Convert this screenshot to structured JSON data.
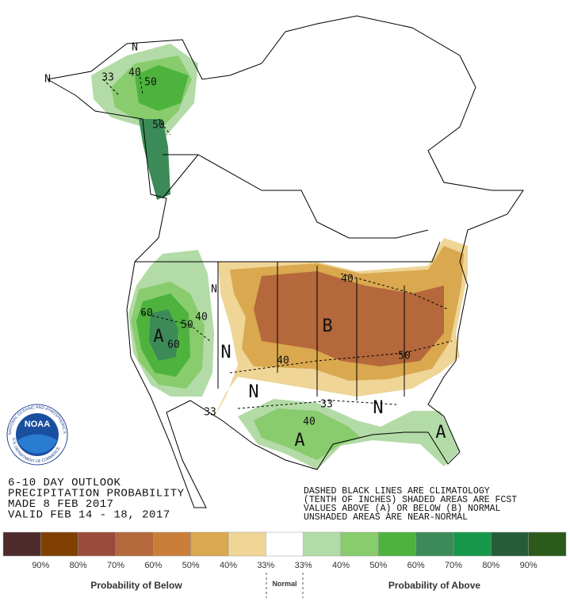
{
  "map": {
    "labels": [
      "N",
      "N",
      "33",
      "40",
      "50",
      "50",
      "N",
      "60",
      "50",
      "40",
      "A",
      "60",
      "N",
      "N",
      "33",
      "40",
      "B",
      "40",
      "50",
      "33",
      "N",
      "40",
      "A",
      "A"
    ]
  },
  "logo": {
    "name": "NOAA",
    "ring_top": "NATIONAL OCEANIC AND ATMOSPHERIC ADMINISTRATION",
    "ring_bottom": "U.S. DEPARTMENT OF COMMERCE"
  },
  "title_block": [
    "6-10 DAY OUTLOOK",
    "PRECIPITATION PROBABILITY",
    "MADE  8 FEB 2017",
    "VALID  FEB 14 - 18, 2017"
  ],
  "note_block": [
    "DASHED BLACK LINES ARE CLIMATOLOGY",
    "(TENTH OF INCHES) SHADED AREAS ARE FCST",
    "VALUES ABOVE (A) OR BELOW (B) NORMAL",
    "UNSHADED AREAS ARE NEAR-NORMAL"
  ],
  "legend": {
    "colors": [
      "#4e2b2b",
      "#7f3f00",
      "#9a4a3a",
      "#b5683b",
      "#c97f3a",
      "#d9a84f",
      "#efd596",
      "#ffffff",
      "#b3dba7",
      "#89cc6e",
      "#4db33d",
      "#3c8a57",
      "#16984a",
      "#265c38",
      "#2c5a1a"
    ],
    "labels": [
      "90%",
      "80%",
      "70%",
      "60%",
      "50%",
      "40%",
      "33%",
      "33%",
      "40%",
      "50%",
      "60%",
      "70%",
      "80%",
      "90%"
    ],
    "below": "Probability of Below",
    "normal": "Normal",
    "above": "Probability of Above"
  }
}
